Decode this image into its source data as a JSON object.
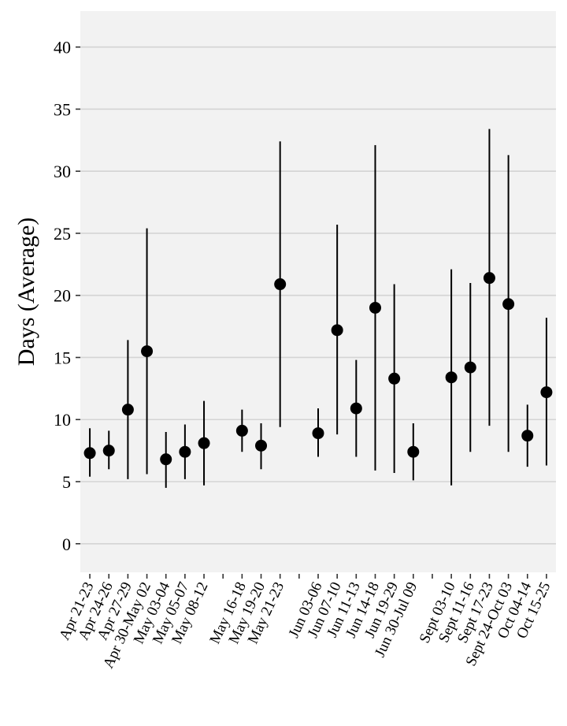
{
  "chart_data": {
    "type": "scatter",
    "title": "",
    "xlabel": "",
    "ylabel": "Days (Average)",
    "ylim": [
      -2.3,
      42.9
    ],
    "yticks": [
      0,
      5,
      10,
      15,
      20,
      25,
      30,
      35,
      40
    ],
    "grid": "horizontal",
    "legend": "none",
    "x_slots": 25,
    "points": [
      {
        "slot": 1,
        "label": "Apr 21-23",
        "mean": 7.3,
        "lo": 5.4,
        "hi": 9.3
      },
      {
        "slot": 2,
        "label": "Apr 24-26",
        "mean": 7.5,
        "lo": 6.0,
        "hi": 9.1
      },
      {
        "slot": 3,
        "label": "Apr 27-29",
        "mean": 10.8,
        "lo": 5.2,
        "hi": 16.4
      },
      {
        "slot": 4,
        "label": "Apr 30-May 02",
        "mean": 15.5,
        "lo": 5.6,
        "hi": 25.4
      },
      {
        "slot": 5,
        "label": "May 03-04",
        "mean": 6.8,
        "lo": 4.5,
        "hi": 9.0
      },
      {
        "slot": 6,
        "label": "May 05-07",
        "mean": 7.4,
        "lo": 5.2,
        "hi": 9.6
      },
      {
        "slot": 7,
        "label": "May 08-12",
        "mean": 8.1,
        "lo": 4.7,
        "hi": 11.5
      },
      {
        "slot": 9,
        "label": "May 16-18",
        "mean": 9.1,
        "lo": 7.4,
        "hi": 10.8
      },
      {
        "slot": 10,
        "label": "May 19-20",
        "mean": 7.9,
        "lo": 6.0,
        "hi": 9.7
      },
      {
        "slot": 11,
        "label": "May 21-23",
        "mean": 20.9,
        "lo": 9.4,
        "hi": 32.4
      },
      {
        "slot": 13,
        "label": "Jun 03-06",
        "mean": 8.9,
        "lo": 7.0,
        "hi": 10.9
      },
      {
        "slot": 14,
        "label": "Jun 07-10",
        "mean": 17.2,
        "lo": 8.8,
        "hi": 25.7
      },
      {
        "slot": 15,
        "label": "Jun 11-13",
        "mean": 10.9,
        "lo": 7.0,
        "hi": 14.8
      },
      {
        "slot": 16,
        "label": "Jun 14-18",
        "mean": 19.0,
        "lo": 5.9,
        "hi": 32.1
      },
      {
        "slot": 17,
        "label": "Jun 19-29",
        "mean": 13.3,
        "lo": 5.7,
        "hi": 20.9
      },
      {
        "slot": 18,
        "label": "Jun 30-Jul 09",
        "mean": 7.4,
        "lo": 5.1,
        "hi": 9.7
      },
      {
        "slot": 20,
        "label": "Sept 03-10",
        "mean": 13.4,
        "lo": 4.7,
        "hi": 22.1
      },
      {
        "slot": 21,
        "label": "Sept 11-16",
        "mean": 14.2,
        "lo": 7.4,
        "hi": 21.0
      },
      {
        "slot": 22,
        "label": "Sept 17-23",
        "mean": 21.4,
        "lo": 9.5,
        "hi": 33.4
      },
      {
        "slot": 23,
        "label": "Sept 24-Oct 03",
        "mean": 19.3,
        "lo": 7.4,
        "hi": 31.3
      },
      {
        "slot": 24,
        "label": "Oct 04-14",
        "mean": 8.7,
        "lo": 6.2,
        "hi": 11.2
      },
      {
        "slot": 25,
        "label": "Oct 15-25",
        "mean": 12.2,
        "lo": 6.3,
        "hi": 18.2
      }
    ]
  }
}
